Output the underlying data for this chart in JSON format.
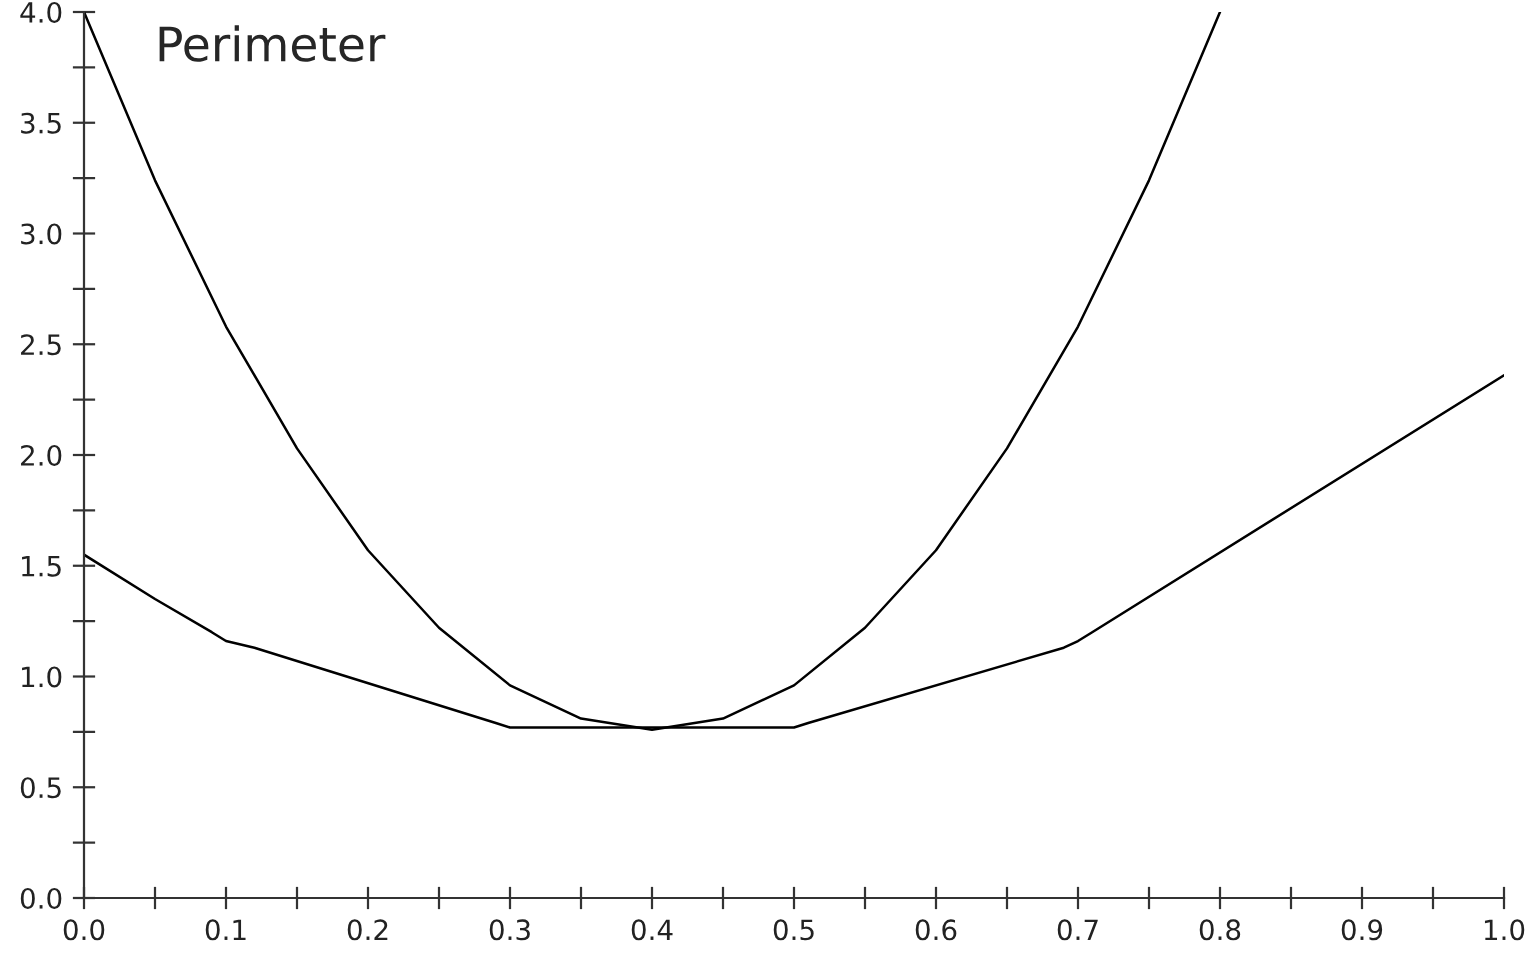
{
  "chart_data": {
    "type": "line",
    "title": "Perimeter",
    "series": [
      {
        "color": "#000000",
        "x": [
          0,
          0.05,
          0.1,
          0.15,
          0.2,
          0.25,
          0.3,
          0.35,
          0.4,
          0.45,
          0.5,
          0.55,
          0.6,
          0.65,
          0.7,
          0.75,
          0.8
        ],
        "values": [
          4.0,
          3.24,
          2.58,
          2.03,
          1.57,
          1.22,
          0.96,
          0.81,
          0.76,
          0.81,
          0.96,
          1.22,
          1.57,
          2.03,
          2.58,
          3.24,
          4.0
        ]
      },
      {
        "color": "#000000",
        "x": [
          0,
          0.05,
          0.09,
          0.1,
          0.12,
          0.29,
          0.3,
          0.31,
          0.49,
          0.5,
          0.51,
          0.69,
          0.7,
          0.71,
          1.0
        ],
        "values": [
          1.55,
          1.35,
          1.2,
          1.16,
          1.13,
          0.79,
          0.77,
          0.77,
          0.77,
          0.77,
          0.79,
          1.13,
          1.16,
          1.2,
          2.36
        ]
      }
    ],
    "xlim": [
      0,
      1.0
    ],
    "ylim": [
      0,
      4.0
    ],
    "xticks": [
      {
        "value": 0,
        "label": "0.0"
      },
      {
        "value": 0.05,
        "label": null
      },
      0.1,
      {
        "value": 0.15,
        "label": null
      },
      0.2,
      {
        "value": 0.25,
        "label": null
      },
      0.3,
      {
        "value": 0.35,
        "label": null
      },
      0.4,
      {
        "value": 0.45,
        "label": null
      },
      0.5,
      {
        "value": 0.55,
        "label": null
      },
      0.6,
      {
        "value": 0.65,
        "label": null
      },
      0.7,
      {
        "value": 0.75,
        "label": null
      },
      0.8,
      {
        "value": 0.85,
        "label": null
      },
      0.9,
      {
        "value": 0.95,
        "label": null
      },
      {
        "value": 1,
        "label": "1.0"
      }
    ],
    "yticks": [
      {
        "value": 0,
        "label": "0.0"
      },
      {
        "value": 0.25,
        "label": null
      },
      0.5,
      {
        "value": 0.75,
        "label": null
      },
      {
        "value": 1,
        "label": "1.0"
      },
      {
        "value": 1.25,
        "label": null
      },
      1.5,
      {
        "value": 1.75,
        "label": null
      },
      {
        "value": 2,
        "label": "2.0"
      },
      {
        "value": 2.25,
        "label": null
      },
      2.5,
      {
        "value": 2.75,
        "label": null
      },
      {
        "value": 3,
        "label": "3.0"
      },
      {
        "value": 3.25,
        "label": null
      },
      3.5,
      {
        "value": 3.75,
        "label": null
      },
      {
        "value": 4,
        "label": "4.0"
      }
    ],
    "grid": false,
    "legend": false,
    "marker": "none",
    "line_style": "solid"
  }
}
